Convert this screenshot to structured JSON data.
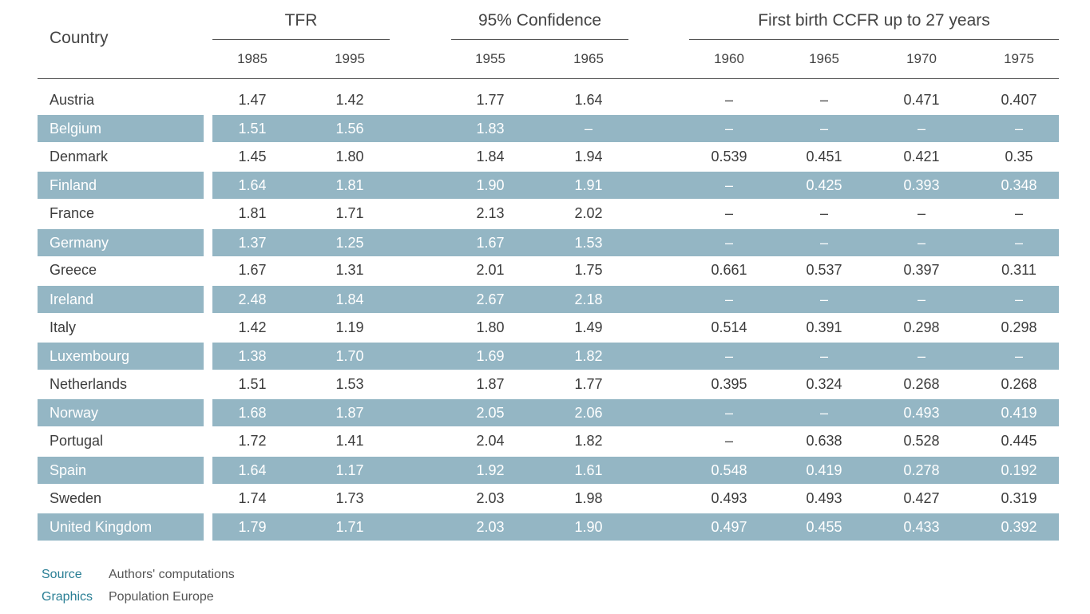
{
  "header": {
    "country_label": "Country",
    "groups": [
      {
        "label": "TFR",
        "years": [
          "1985",
          "1995"
        ]
      },
      {
        "label": "95% Confidence",
        "years": [
          "1955",
          "1965"
        ]
      },
      {
        "label": "First birth CCFR up to 27 years",
        "years": [
          "1960",
          "1965",
          "1970",
          "1975"
        ]
      }
    ]
  },
  "chart_data": {
    "type": "table",
    "columns": [
      "Country",
      "TFR 1985",
      "TFR 1995",
      "95% Confidence 1955",
      "95% Confidence 1965",
      "First birth CCFR up to 27 years 1960",
      "First birth CCFR up to 27 years 1965",
      "First birth CCFR up to 27 years 1970",
      "First birth CCFR up to 27 years 1975"
    ],
    "rows": [
      {
        "country": "Austria",
        "values": [
          "1.47",
          "1.42",
          "1.77",
          "1.64",
          "–",
          "–",
          "0.471",
          "0.407"
        ],
        "shaded": false
      },
      {
        "country": "Belgium",
        "values": [
          "1.51",
          "1.56",
          "1.83",
          "–",
          "–",
          "–",
          "–",
          "–"
        ],
        "shaded": true
      },
      {
        "country": "Denmark",
        "values": [
          "1.45",
          "1.80",
          "1.84",
          "1.94",
          "0.539",
          "0.451",
          "0.421",
          "0.35"
        ],
        "shaded": false
      },
      {
        "country": "Finland",
        "values": [
          "1.64",
          "1.81",
          "1.90",
          "1.91",
          "–",
          "0.425",
          "0.393",
          "0.348"
        ],
        "shaded": true
      },
      {
        "country": "France",
        "values": [
          "1.81",
          "1.71",
          "2.13",
          "2.02",
          "–",
          "–",
          "–",
          "–"
        ],
        "shaded": false
      },
      {
        "country": "Germany",
        "values": [
          "1.37",
          "1.25",
          "1.67",
          "1.53",
          "–",
          "–",
          "–",
          "–"
        ],
        "shaded": true
      },
      {
        "country": "Greece",
        "values": [
          "1.67",
          "1.31",
          "2.01",
          "1.75",
          "0.661",
          "0.537",
          "0.397",
          "0.311"
        ],
        "shaded": false
      },
      {
        "country": "Ireland",
        "values": [
          "2.48",
          "1.84",
          "2.67",
          "2.18",
          "–",
          "–",
          "–",
          "–"
        ],
        "shaded": true
      },
      {
        "country": "Italy",
        "values": [
          "1.42",
          "1.19",
          "1.80",
          "1.49",
          "0.514",
          "0.391",
          "0.298",
          "0.298"
        ],
        "shaded": false
      },
      {
        "country": "Luxembourg",
        "values": [
          "1.38",
          "1.70",
          "1.69",
          "1.82",
          "–",
          "–",
          "–",
          "–"
        ],
        "shaded": true
      },
      {
        "country": "Netherlands",
        "values": [
          "1.51",
          "1.53",
          "1.87",
          "1.77",
          "0.395",
          "0.324",
          "0.268",
          "0.268"
        ],
        "shaded": false
      },
      {
        "country": "Norway",
        "values": [
          "1.68",
          "1.87",
          "2.05",
          "2.06",
          "–",
          "–",
          "0.493",
          "0.419"
        ],
        "shaded": true
      },
      {
        "country": "Portugal",
        "values": [
          "1.72",
          "1.41",
          "2.04",
          "1.82",
          "–",
          "0.638",
          "0.528",
          "0.445"
        ],
        "shaded": false
      },
      {
        "country": "Spain",
        "values": [
          "1.64",
          "1.17",
          "1.92",
          "1.61",
          "0.548",
          "0.419",
          "0.278",
          "0.192"
        ],
        "shaded": true
      },
      {
        "country": "Sweden",
        "values": [
          "1.74",
          "1.73",
          "2.03",
          "1.98",
          "0.493",
          "0.493",
          "0.427",
          "0.319"
        ],
        "shaded": false
      },
      {
        "country": "United Kingdom",
        "values": [
          "1.79",
          "1.71",
          "2.03",
          "1.90",
          "0.497",
          "0.455",
          "0.433",
          "0.392"
        ],
        "shaded": true
      }
    ]
  },
  "footer": {
    "source_label": "Source",
    "source_value": "Authors' computations",
    "graphics_label": "Graphics",
    "graphics_value": "Population Europe"
  },
  "colors": {
    "band": "#94b6c4",
    "text": "#3c3c3c",
    "footer_label": "#2a7f95"
  }
}
